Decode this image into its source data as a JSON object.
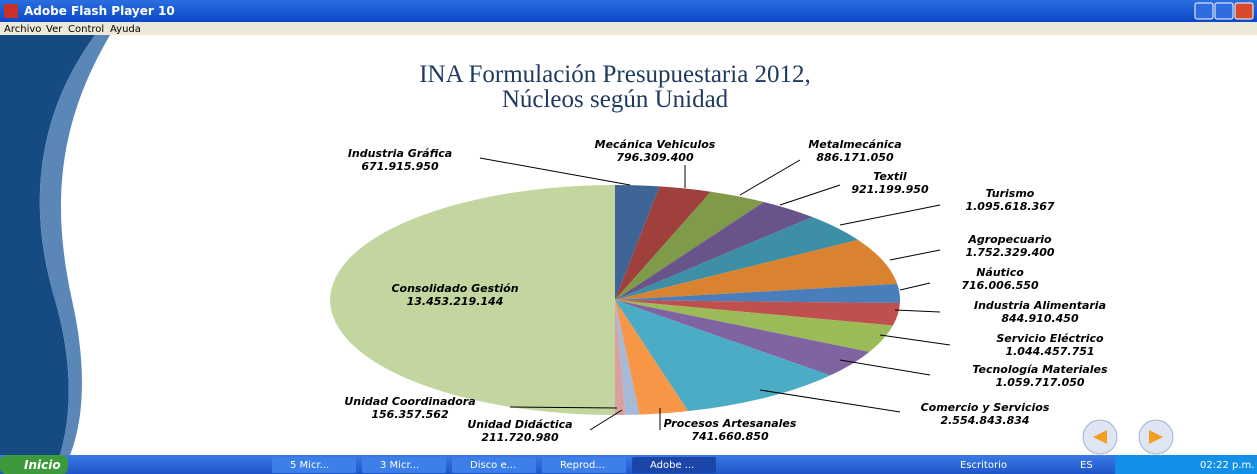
{
  "window": {
    "title": "Adobe Flash Player 10",
    "menu": [
      "Archivo",
      "Ver",
      "Control",
      "Ayuda"
    ]
  },
  "taskbar": {
    "start": "Inicio",
    "items": [
      "5 Micr...",
      "3 Micr...",
      "Disco e...",
      "Reprod...",
      "Adobe ..."
    ],
    "toolbar": "Escritorio",
    "language": "ES",
    "clock": "02:22 p.m."
  },
  "chart_data": {
    "type": "pie",
    "title": [
      "INA Formulación Presupuestaria 2012,",
      "Núcleos según Unidad"
    ],
    "categories": [
      "Industria Gráfica",
      "Mecánica Vehiculos",
      "Metalmecánica",
      "Textil",
      "Turismo",
      "Agropecuario",
      "Náutico",
      "Industria Alimentaria",
      "Servicio Eléctrico",
      "Tecnología Materiales",
      "Comercio y Servicios",
      "Procesos Artesanales",
      "Unidad Didáctica",
      "Unidad Coordinadora",
      "Consolidado Gestión"
    ],
    "values": [
      671915950,
      796309400,
      886171050,
      921199950,
      1095618367,
      1752329400,
      716006550,
      844910450,
      1044457751,
      1059717050,
      2554843834,
      741660850,
      211720980,
      156357562,
      13453219144
    ],
    "value_labels": [
      "671.915.950",
      "796.309.400",
      "886.171.050",
      "921.199.950",
      "1.095.618.367",
      "1.752.329.400",
      "716.006.550",
      "844.910.450",
      "1.044.457.751",
      "1.059.717.050",
      "2.554.843.834",
      "741.660.850",
      "211.720.980",
      "156.357.562",
      "13.453.219.144"
    ],
    "colors": [
      "#3f6496",
      "#a0403c",
      "#7f9a48",
      "#68548a",
      "#3d8fa5",
      "#d98330",
      "#4a7ebb",
      "#c0504d",
      "#9bbb59",
      "#8064a2",
      "#4bacc6",
      "#f79646",
      "#a7b9d8",
      "#d9a0a0",
      "#c4d6a0"
    ]
  }
}
